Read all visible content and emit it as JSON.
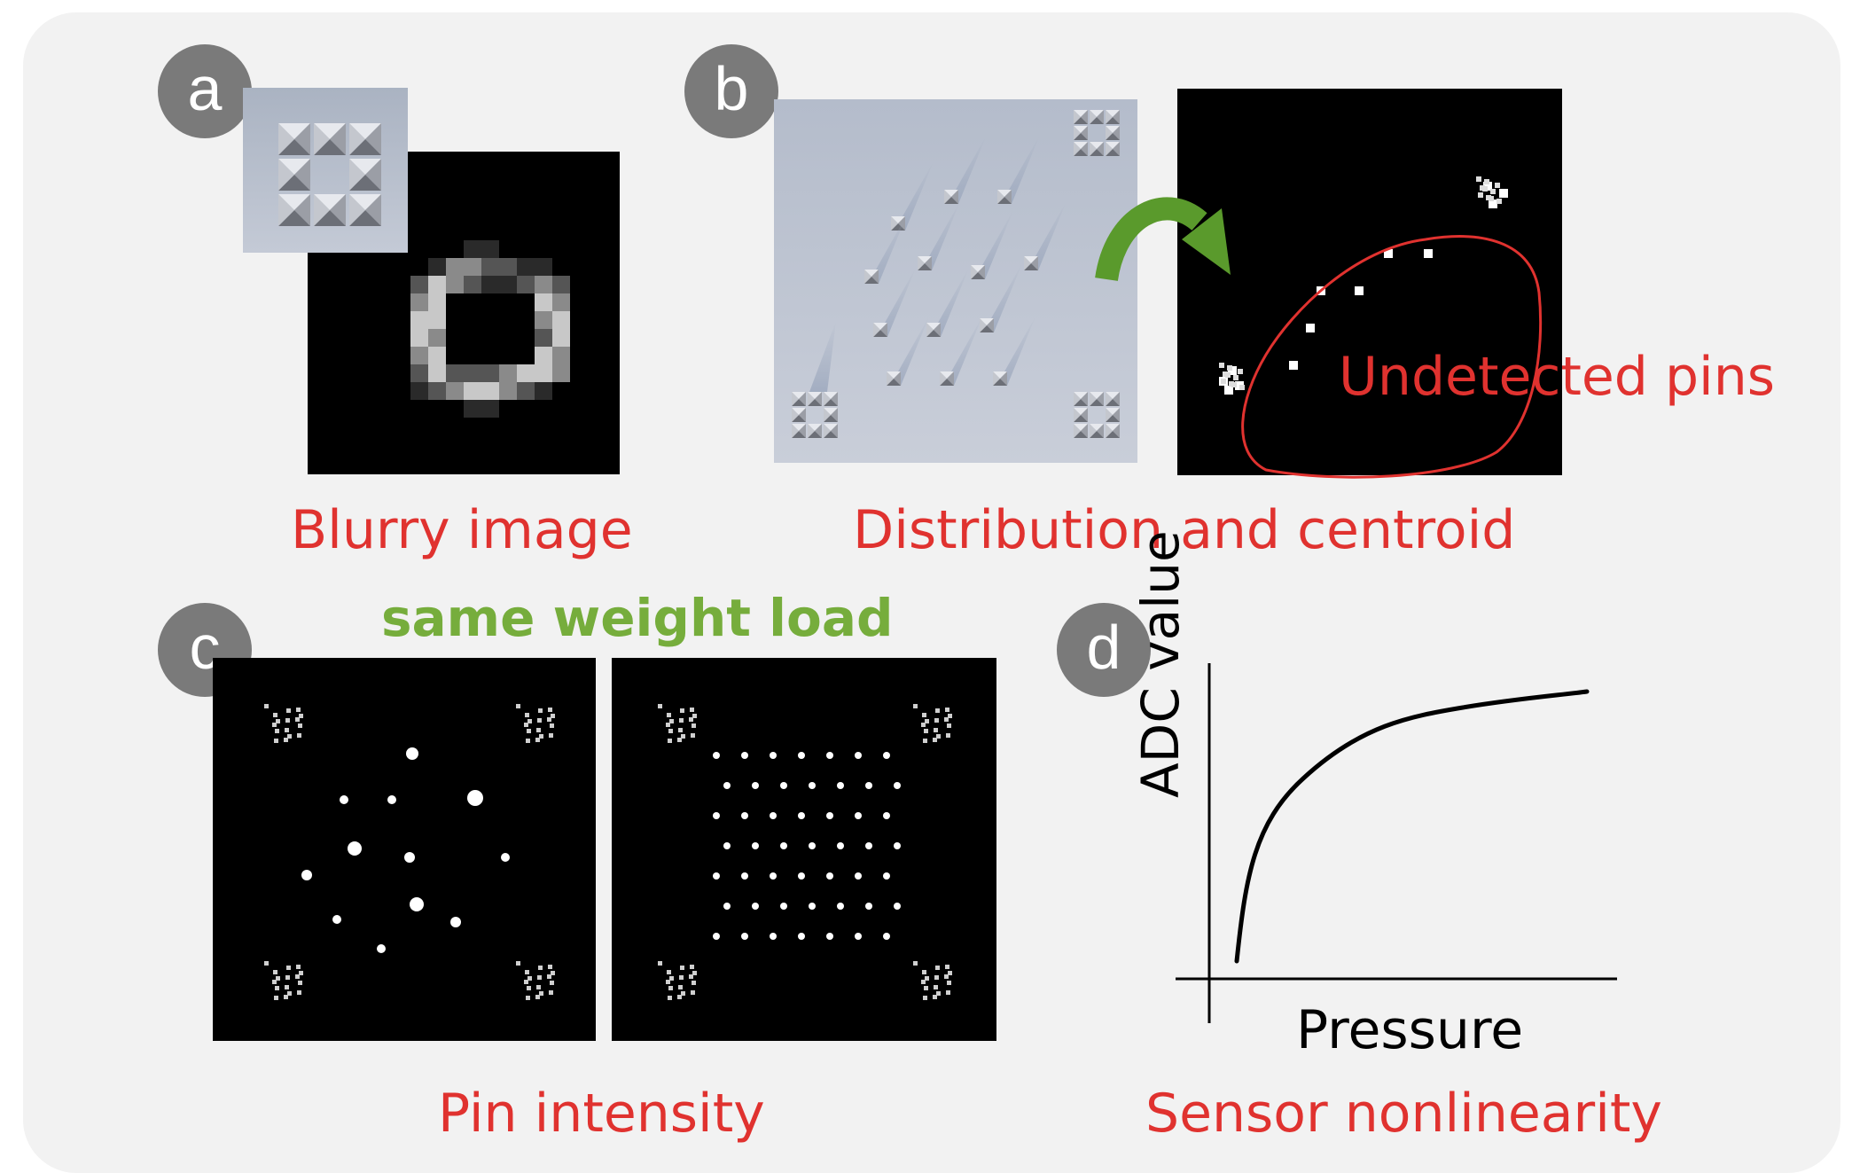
{
  "panels": {
    "a": {
      "badge": "a",
      "caption": "Blurry image"
    },
    "b": {
      "badge": "b",
      "caption": "Distribution and centroid",
      "annotation": "Undetected pins"
    },
    "c": {
      "badge": "c",
      "caption": "Pin intensity",
      "header": "same weight load"
    },
    "d": {
      "badge": "d",
      "caption": "Sensor nonlinearity",
      "ylabel": "ADC value",
      "xlabel": "Pressure"
    }
  },
  "colors": {
    "caption_red": "#e0322f",
    "header_green": "#76ad3c",
    "arrow_green": "#5a9a2c",
    "badge_gray": "#7a7a7a",
    "panel_bg": "#f2f2f2"
  }
}
